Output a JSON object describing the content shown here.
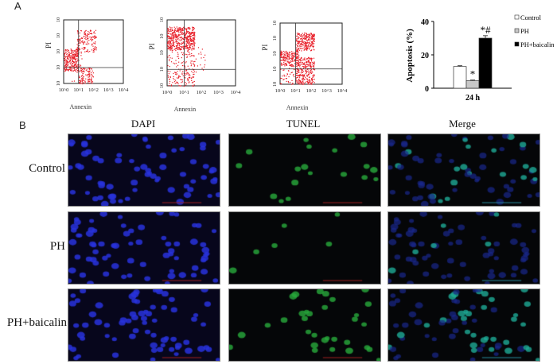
{
  "panel_a": {
    "letter": "A",
    "flow_plots": [
      {
        "xlabel": "Annexin",
        "ylabel": "PI",
        "ticks": [
          "10^0",
          "10^1",
          "10^2",
          "10^3",
          "10^4"
        ]
      },
      {
        "xlabel": "Annexin",
        "ylabel": "PI",
        "ticks": [
          "10^0",
          "10^1",
          "10^2",
          "10^3",
          "10^4"
        ]
      },
      {
        "xlabel": "Annexin",
        "ylabel": "PI",
        "ticks": [
          "10^0",
          "10^1",
          "10^2",
          "10^3",
          "10^4"
        ]
      }
    ],
    "dot_color": "#e8202a"
  },
  "chart_data": {
    "type": "bar",
    "categories": [
      "24 h"
    ],
    "series": [
      {
        "name": "Control",
        "values": [
          13
        ],
        "error": [
          0.5
        ],
        "color": "#ffffff",
        "annotation": ""
      },
      {
        "name": "PH",
        "values": [
          4.5
        ],
        "error": [
          0.4
        ],
        "color": "#c8c8c8",
        "annotation": "*"
      },
      {
        "name": "PH+baicalin",
        "values": [
          30
        ],
        "error": [
          1.5
        ],
        "color": "#000000",
        "annotation": "*#"
      }
    ],
    "ylabel": "Apoptosis (%)",
    "xlabel": "",
    "ylim": [
      0,
      40
    ],
    "yticks": [
      0,
      20,
      40
    ],
    "legend": "right"
  },
  "panel_b": {
    "letter": "B",
    "columns": [
      "DAPI",
      "TUNEL",
      "Merge"
    ],
    "rows": [
      "Control",
      "PH",
      "PH+baicalin"
    ]
  }
}
